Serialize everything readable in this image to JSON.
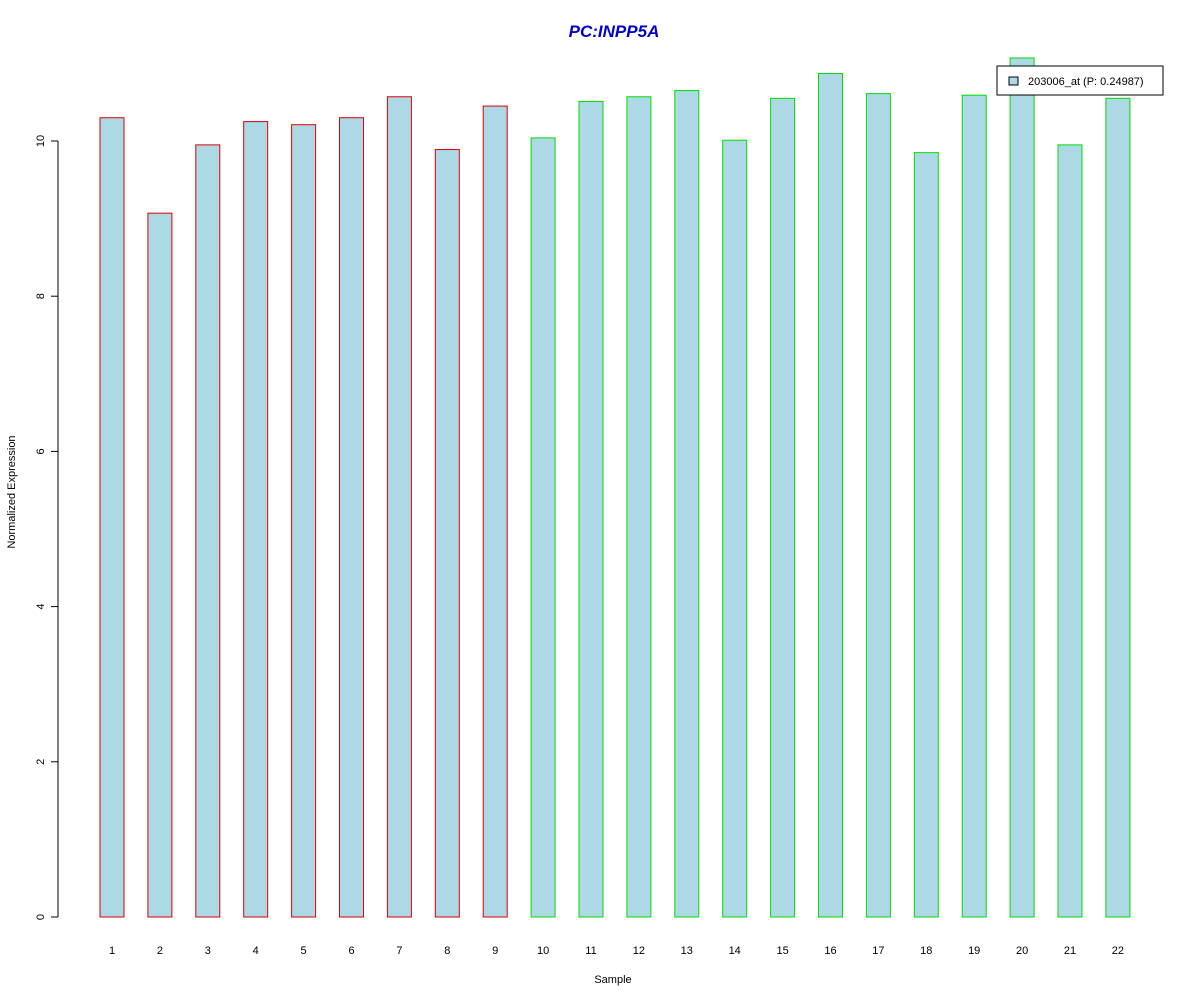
{
  "chart_data": {
    "type": "bar",
    "title": "PC:INPP5A",
    "xlabel": "Sample",
    "ylabel": "Normalized Expression",
    "categories": [
      "1",
      "2",
      "3",
      "4",
      "5",
      "6",
      "7",
      "8",
      "9",
      "10",
      "11",
      "12",
      "13",
      "14",
      "15",
      "16",
      "17",
      "18",
      "19",
      "20",
      "21",
      "22"
    ],
    "series": [
      {
        "name": "203006_at (P: 0.24987)",
        "values": [
          10.3,
          9.07,
          9.95,
          10.25,
          10.21,
          10.3,
          10.57,
          9.89,
          10.45,
          10.04,
          10.51,
          10.57,
          10.65,
          10.01,
          10.55,
          10.87,
          10.61,
          9.85,
          10.59,
          11.07,
          9.95,
          10.55
        ]
      }
    ],
    "groups": [
      {
        "samples": [
          1,
          9
        ],
        "border_color": "#dd0000"
      },
      {
        "samples": [
          10,
          22
        ],
        "border_color": "#00dd00"
      }
    ],
    "ylim": [
      0,
      11.07
    ],
    "yticks": [
      0,
      2,
      4,
      6,
      8,
      10
    ],
    "bar_fill": "#add8e6",
    "title_color": "#0000cc",
    "legend": {
      "entries": [
        "203006_at (P: 0.24987)"
      ],
      "placement": "top-right"
    },
    "grid": false
  }
}
